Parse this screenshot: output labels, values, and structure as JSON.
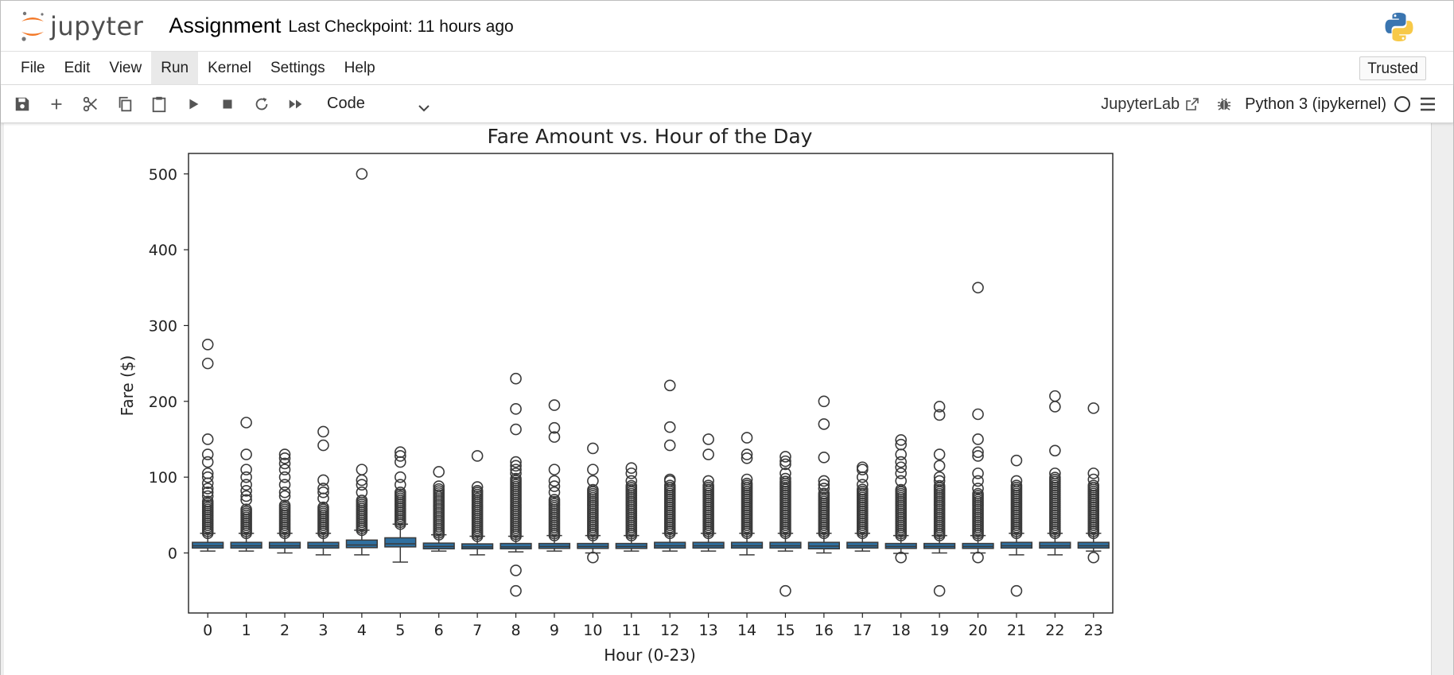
{
  "header": {
    "logo_text": "jupyter",
    "notebook_title": "Assignment",
    "checkpoint": "Last Checkpoint: 11 hours ago"
  },
  "menubar": {
    "items": [
      "File",
      "Edit",
      "View",
      "Run",
      "Kernel",
      "Settings",
      "Help"
    ],
    "active": "Run",
    "trusted": "Trusted"
  },
  "toolbar": {
    "buttons": [
      "save-icon",
      "add-icon",
      "cut-icon",
      "copy-icon",
      "paste-icon",
      "run-icon",
      "stop-icon",
      "restart-icon",
      "fast-forward-icon"
    ],
    "cell_type": "Code",
    "jupyterlab_link": "JupyterLab",
    "kernel": "Python 3 (ipykernel)"
  },
  "colors": {
    "box_fill": "#2f6f9f",
    "accent_orange": "#f37726",
    "active_menu_bg": "#e9e9e9"
  },
  "chart_data": {
    "type": "box",
    "title": "Fare Amount vs. Hour of the Day",
    "xlabel": "Hour (0-23)",
    "ylabel": "Fare ($)",
    "ylim": [
      -80,
      525
    ],
    "yticks": [
      0,
      100,
      200,
      300,
      400,
      500
    ],
    "categories": [
      "0",
      "1",
      "2",
      "3",
      "4",
      "5",
      "6",
      "7",
      "8",
      "9",
      "10",
      "11",
      "12",
      "13",
      "14",
      "15",
      "16",
      "17",
      "18",
      "19",
      "20",
      "21",
      "22",
      "23"
    ],
    "boxes": [
      {
        "q1": 6.5,
        "median": 9.5,
        "q3": 14,
        "whisker_low": 2.5,
        "whisker_high": 26,
        "dense_outliers_to": 68,
        "outliers": [
          275,
          250,
          150,
          130,
          120,
          105,
          100,
          92,
          85,
          80,
          75
        ]
      },
      {
        "q1": 6.5,
        "median": 9.5,
        "q3": 14,
        "whisker_low": 2.5,
        "whisker_high": 26,
        "dense_outliers_to": 60,
        "outliers": [
          172,
          130,
          110,
          100,
          90,
          82,
          75,
          70
        ]
      },
      {
        "q1": 6.5,
        "median": 9.5,
        "q3": 14,
        "whisker_low": 0,
        "whisker_high": 26,
        "dense_outliers_to": 65,
        "outliers": [
          130,
          125,
          118,
          110,
          100,
          90,
          80,
          75
        ]
      },
      {
        "q1": 6.5,
        "median": 9.5,
        "q3": 14,
        "whisker_low": -2.5,
        "whisker_high": 26,
        "dense_outliers_to": 62,
        "outliers": [
          160,
          142,
          96,
          85,
          80,
          72
        ]
      },
      {
        "q1": 7,
        "median": 10.5,
        "q3": 17,
        "whisker_low": -2.5,
        "whisker_high": 30,
        "dense_outliers_to": 70,
        "outliers": [
          500,
          110,
          96,
          90,
          80
        ]
      },
      {
        "q1": 8,
        "median": 12,
        "q3": 20,
        "whisker_low": -12,
        "whisker_high": 38,
        "dense_outliers_to": 80,
        "outliers": [
          133,
          128,
          120,
          100,
          90
        ]
      },
      {
        "q1": 5.5,
        "median": 8.5,
        "q3": 13,
        "whisker_low": 2.5,
        "whisker_high": 24,
        "dense_outliers_to": 85,
        "outliers": [
          107,
          88
        ]
      },
      {
        "q1": 5.5,
        "median": 8,
        "q3": 12,
        "whisker_low": -2.5,
        "whisker_high": 22,
        "dense_outliers_to": 80,
        "outliers": [
          128,
          87,
          82
        ]
      },
      {
        "q1": 5.5,
        "median": 8,
        "q3": 12.5,
        "whisker_low": 1.5,
        "whisker_high": 22,
        "dense_outliers_to": 100,
        "outliers": [
          230,
          190,
          163,
          120,
          115,
          110,
          105,
          -23,
          -50
        ]
      },
      {
        "q1": 6,
        "median": 8.5,
        "q3": 12.5,
        "whisker_low": 2.5,
        "whisker_high": 23,
        "dense_outliers_to": 72,
        "outliers": [
          195,
          165,
          153,
          110,
          95,
          88,
          80
        ]
      },
      {
        "q1": 6,
        "median": 8.5,
        "q3": 12.5,
        "whisker_low": 0,
        "whisker_high": 23,
        "dense_outliers_to": 85,
        "outliers": [
          138,
          110,
          95,
          -6
        ]
      },
      {
        "q1": 6,
        "median": 8.5,
        "q3": 12.5,
        "whisker_low": 2.5,
        "whisker_high": 23,
        "dense_outliers_to": 90,
        "outliers": [
          112,
          105,
          95
        ]
      },
      {
        "q1": 6.5,
        "median": 9.5,
        "q3": 14,
        "whisker_low": 2.5,
        "whisker_high": 26,
        "dense_outliers_to": 90,
        "outliers": [
          221,
          166,
          142,
          97,
          95
        ]
      },
      {
        "q1": 6.5,
        "median": 9.5,
        "q3": 14,
        "whisker_low": 2.5,
        "whisker_high": 26,
        "dense_outliers_to": 90,
        "outliers": [
          150,
          130,
          95
        ]
      },
      {
        "q1": 6.5,
        "median": 9.5,
        "q3": 14,
        "whisker_low": -2.5,
        "whisker_high": 26,
        "dense_outliers_to": 92,
        "outliers": [
          152,
          130,
          125,
          97
        ]
      },
      {
        "q1": 6.5,
        "median": 9.5,
        "q3": 14,
        "whisker_low": 2.5,
        "whisker_high": 26,
        "dense_outliers_to": 95,
        "outliers": [
          127,
          121,
          117,
          105,
          98,
          -50
        ]
      },
      {
        "q1": 5.5,
        "median": 9,
        "q3": 14,
        "whisker_low": 0,
        "whisker_high": 26,
        "dense_outliers_to": 80,
        "outliers": [
          200,
          170,
          126,
          95,
          90,
          85
        ]
      },
      {
        "q1": 6.5,
        "median": 9.5,
        "q3": 14,
        "whisker_low": 2.5,
        "whisker_high": 26,
        "dense_outliers_to": 85,
        "outliers": [
          113,
          110,
          100,
          90
        ]
      },
      {
        "q1": 6,
        "median": 8.5,
        "q3": 12.5,
        "whisker_low": -0.5,
        "whisker_high": 23,
        "dense_outliers_to": 85,
        "outliers": [
          149,
          143,
          130,
          120,
          113,
          105,
          95,
          -6
        ]
      },
      {
        "q1": 6,
        "median": 8.5,
        "q3": 12.5,
        "whisker_low": 0,
        "whisker_high": 23,
        "dense_outliers_to": 90,
        "outliers": [
          193,
          182,
          130,
          115,
          100,
          95,
          -50
        ]
      },
      {
        "q1": 6,
        "median": 8.5,
        "q3": 12.5,
        "whisker_low": 0,
        "whisker_high": 23,
        "dense_outliers_to": 80,
        "outliers": [
          350,
          183,
          150,
          133,
          128,
          105,
          95,
          85,
          -6
        ]
      },
      {
        "q1": 6.5,
        "median": 9.5,
        "q3": 14,
        "whisker_low": -2.5,
        "whisker_high": 26,
        "dense_outliers_to": 90,
        "outliers": [
          122,
          95,
          -50
        ]
      },
      {
        "q1": 6.5,
        "median": 9.5,
        "q3": 14,
        "whisker_low": -2.5,
        "whisker_high": 26,
        "dense_outliers_to": 100,
        "outliers": [
          207,
          193,
          135,
          105
        ]
      },
      {
        "q1": 6.5,
        "median": 9.5,
        "q3": 14,
        "whisker_low": 2.5,
        "whisker_high": 26,
        "dense_outliers_to": 90,
        "outliers": [
          191,
          105,
          97,
          -6
        ]
      }
    ]
  }
}
